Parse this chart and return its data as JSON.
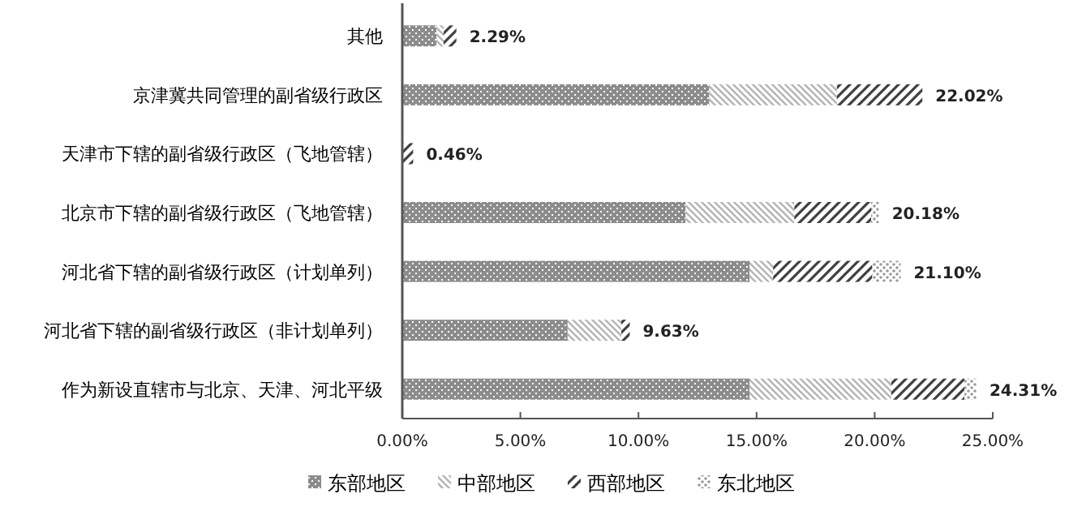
{
  "chart_data": {
    "type": "bar",
    "orientation": "horizontal",
    "stacked": true,
    "categories": [
      "其他",
      "京津冀共同管理的副省级行政区",
      "天津市下辖的副省级行政区（飞地管辖）",
      "北京市下辖的副省级行政区（飞地管辖）",
      "河北省下辖的副省级行政区（计划单列）",
      "河北省下辖的副省级行政区（非计划单列）",
      "作为新设直辖市与北京、天津、河北平级"
    ],
    "series": [
      {
        "name": "东部地区",
        "color": "#8c8c8c",
        "values": [
          1.45,
          13.0,
          0,
          12.0,
          14.7,
          7.0,
          14.7
        ]
      },
      {
        "name": "中部地区",
        "color": "#b4b4b4",
        "values": [
          0.3,
          5.4,
          0,
          4.6,
          1.0,
          2.27,
          6.0
        ]
      },
      {
        "name": "西部地区",
        "color": "#404040",
        "values": [
          0.54,
          3.62,
          0.46,
          3.25,
          4.2,
          0.36,
          3.1
        ]
      },
      {
        "name": "东北地区",
        "color": "#9a9a9a",
        "values": [
          0,
          0,
          0,
          0.33,
          1.2,
          0,
          0.51
        ]
      }
    ],
    "totals": [
      "2.29%",
      "22.02%",
      "0.46%",
      "20.18%",
      "21.10%",
      "9.63%",
      "24.31%"
    ],
    "xlim": [
      0,
      25
    ],
    "xticks": [
      {
        "value": 0,
        "label": "0.00%"
      },
      {
        "value": 5,
        "label": "5.00%"
      },
      {
        "value": 10,
        "label": "10.00%"
      },
      {
        "value": 15,
        "label": "15.00%"
      },
      {
        "value": 20,
        "label": "20.00%"
      },
      {
        "value": 25,
        "label": "25.00%"
      }
    ],
    "legend": "bottom"
  }
}
